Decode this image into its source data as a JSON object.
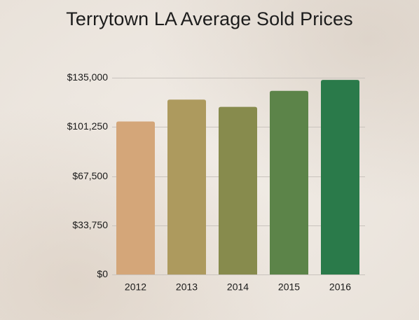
{
  "chart_data": {
    "type": "bar",
    "title": "Terrytown LA Average Sold Prices",
    "xlabel": "",
    "ylabel": "",
    "categories": [
      "2012",
      "2013",
      "2014",
      "2015",
      "2016"
    ],
    "values": [
      105000,
      120000,
      115000,
      126000,
      133500
    ],
    "ylim": [
      0,
      135000
    ],
    "yticks": [
      0,
      33750,
      67500,
      101250,
      135000
    ],
    "ytick_labels": [
      "$0",
      "$33,750",
      "$67,500",
      "$101,250",
      "$135,000"
    ],
    "grid": true,
    "legend": "none",
    "bar_colors": [
      "#d4a679",
      "#ad9a5e",
      "#878b4d",
      "#5c8449",
      "#2a7a4a"
    ],
    "background_color": "#ede7e0",
    "gridline_color": "#c9c3bd"
  }
}
